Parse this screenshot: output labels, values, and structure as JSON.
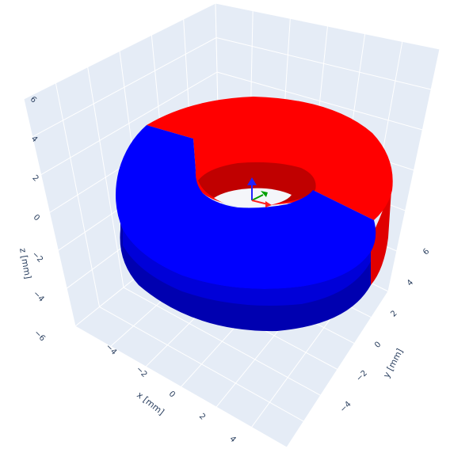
{
  "chart_data": {
    "type": "3d-surface",
    "xlabel": "x [mm]",
    "ylabel": "y [mm]",
    "zlabel": "z [mm]",
    "xlim": [
      -6,
      6
    ],
    "ylim": [
      -6,
      6
    ],
    "zlim": [
      -6,
      6
    ],
    "x_ticks": [
      "−4",
      "−2",
      "0",
      "2",
      "4"
    ],
    "y_ticks": [
      "−4",
      "−2",
      "0",
      "2",
      "4",
      "6"
    ],
    "z_ticks": [
      "−6",
      "−4",
      "−2",
      "0",
      "2",
      "4",
      "6"
    ],
    "grid": true,
    "background_color": "#e5ecf6",
    "objects": [
      {
        "shape": "ring-segment",
        "inner_radius_mm": 2,
        "outer_radius_mm": 5,
        "z_range_mm": [
          -2,
          2
        ],
        "angle_deg": [
          -90,
          90
        ],
        "color": "#ff0000"
      },
      {
        "shape": "ring-segment",
        "inner_radius_mm": 2,
        "outer_radius_mm": 5,
        "z_range_mm": [
          -2,
          2
        ],
        "angle_deg": [
          90,
          270
        ],
        "color": "#0000ff"
      }
    ],
    "orientation_triad": {
      "x_color": "#ff0000",
      "y_color": "#00a000",
      "z_color": "#0000ff"
    }
  }
}
